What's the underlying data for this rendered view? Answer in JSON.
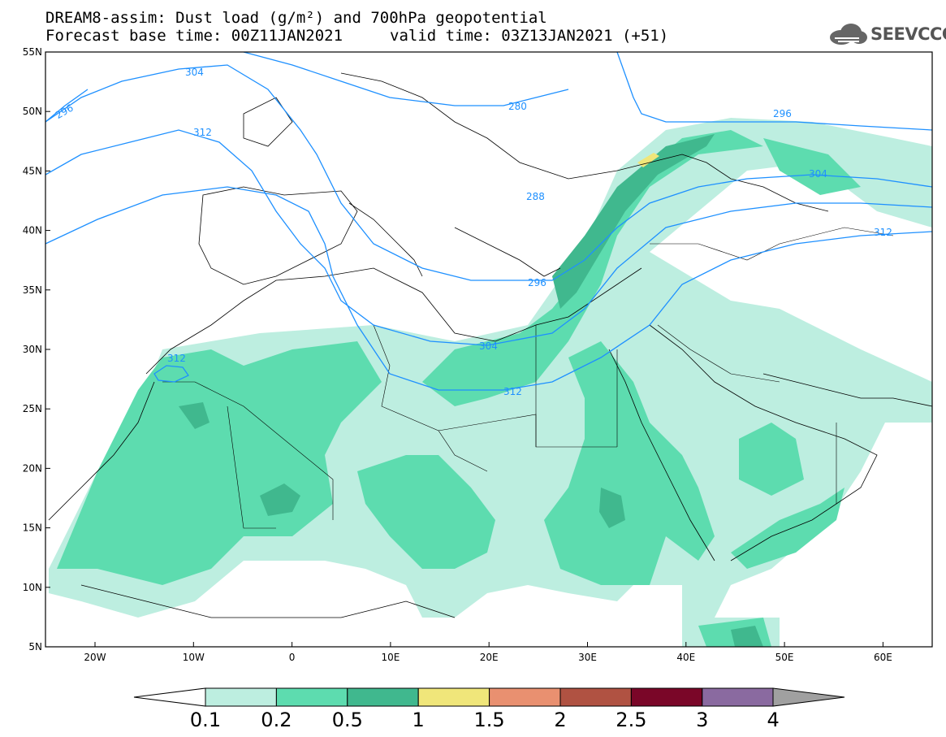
{
  "header": {
    "title_line1": "DREAM8-assim: Dust load (g/m²) and 700hPa geopotential",
    "title_line2a": "Forecast base time: 00Z11JAN2021",
    "title_line2b": "valid time: 03Z13JAN2021 (+51)",
    "logo_text": "SEEVCCC"
  },
  "map": {
    "lat_labels": [
      "55N",
      "50N",
      "45N",
      "40N",
      "35N",
      "30N",
      "25N",
      "20N",
      "15N",
      "10N",
      "5N"
    ],
    "lon_labels": [
      "20W",
      "10W",
      "0",
      "10E",
      "20E",
      "30E",
      "40E",
      "50E",
      "60E"
    ],
    "contour_labels": [
      "296",
      "304",
      "312",
      "280",
      "288",
      "296",
      "304",
      "312",
      "296",
      "304",
      "312",
      "312"
    ]
  },
  "colorbar": {
    "labels": [
      "0.1",
      "0.2",
      "0.5",
      "1",
      "1.5",
      "2",
      "2.5",
      "3",
      "4"
    ],
    "colors": [
      "#bdeee0",
      "#5ddcaf",
      "#40b88e",
      "#f0e67a",
      "#e99070",
      "#b05242",
      "#7a0628",
      "#8a6aa0",
      "#a0a0a0"
    ]
  }
}
